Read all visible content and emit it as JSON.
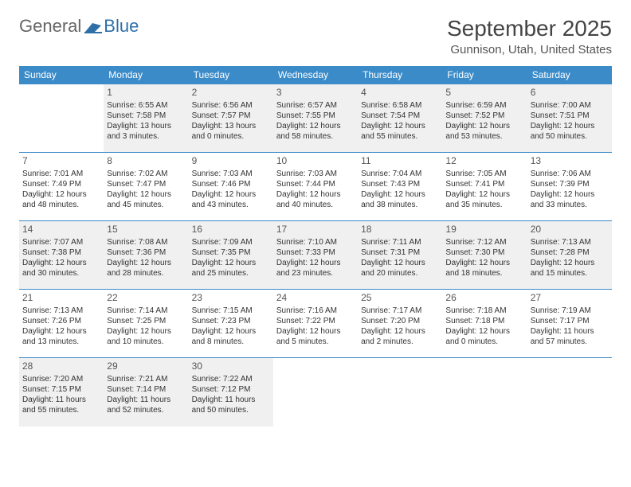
{
  "brand": {
    "general": "General",
    "blue": "Blue",
    "general_color": "#777777",
    "blue_color": "#2f6fa8",
    "icon_color": "#2f6fa8"
  },
  "title": "September 2025",
  "location": "Gunnison, Utah, United States",
  "colors": {
    "header_bg": "#3b8bc9",
    "header_text": "#ffffff",
    "stripe_bg": "#f0f0f0",
    "border": "#3b8bc9",
    "text": "#333333"
  },
  "day_headers": [
    "Sunday",
    "Monday",
    "Tuesday",
    "Wednesday",
    "Thursday",
    "Friday",
    "Saturday"
  ],
  "weeks": [
    [
      null,
      {
        "n": "1",
        "sr": "6:55 AM",
        "ss": "7:58 PM",
        "dl": "13 hours and 3 minutes."
      },
      {
        "n": "2",
        "sr": "6:56 AM",
        "ss": "7:57 PM",
        "dl": "13 hours and 0 minutes."
      },
      {
        "n": "3",
        "sr": "6:57 AM",
        "ss": "7:55 PM",
        "dl": "12 hours and 58 minutes."
      },
      {
        "n": "4",
        "sr": "6:58 AM",
        "ss": "7:54 PM",
        "dl": "12 hours and 55 minutes."
      },
      {
        "n": "5",
        "sr": "6:59 AM",
        "ss": "7:52 PM",
        "dl": "12 hours and 53 minutes."
      },
      {
        "n": "6",
        "sr": "7:00 AM",
        "ss": "7:51 PM",
        "dl": "12 hours and 50 minutes."
      }
    ],
    [
      {
        "n": "7",
        "sr": "7:01 AM",
        "ss": "7:49 PM",
        "dl": "12 hours and 48 minutes."
      },
      {
        "n": "8",
        "sr": "7:02 AM",
        "ss": "7:47 PM",
        "dl": "12 hours and 45 minutes."
      },
      {
        "n": "9",
        "sr": "7:03 AM",
        "ss": "7:46 PM",
        "dl": "12 hours and 43 minutes."
      },
      {
        "n": "10",
        "sr": "7:03 AM",
        "ss": "7:44 PM",
        "dl": "12 hours and 40 minutes."
      },
      {
        "n": "11",
        "sr": "7:04 AM",
        "ss": "7:43 PM",
        "dl": "12 hours and 38 minutes."
      },
      {
        "n": "12",
        "sr": "7:05 AM",
        "ss": "7:41 PM",
        "dl": "12 hours and 35 minutes."
      },
      {
        "n": "13",
        "sr": "7:06 AM",
        "ss": "7:39 PM",
        "dl": "12 hours and 33 minutes."
      }
    ],
    [
      {
        "n": "14",
        "sr": "7:07 AM",
        "ss": "7:38 PM",
        "dl": "12 hours and 30 minutes."
      },
      {
        "n": "15",
        "sr": "7:08 AM",
        "ss": "7:36 PM",
        "dl": "12 hours and 28 minutes."
      },
      {
        "n": "16",
        "sr": "7:09 AM",
        "ss": "7:35 PM",
        "dl": "12 hours and 25 minutes."
      },
      {
        "n": "17",
        "sr": "7:10 AM",
        "ss": "7:33 PM",
        "dl": "12 hours and 23 minutes."
      },
      {
        "n": "18",
        "sr": "7:11 AM",
        "ss": "7:31 PM",
        "dl": "12 hours and 20 minutes."
      },
      {
        "n": "19",
        "sr": "7:12 AM",
        "ss": "7:30 PM",
        "dl": "12 hours and 18 minutes."
      },
      {
        "n": "20",
        "sr": "7:13 AM",
        "ss": "7:28 PM",
        "dl": "12 hours and 15 minutes."
      }
    ],
    [
      {
        "n": "21",
        "sr": "7:13 AM",
        "ss": "7:26 PM",
        "dl": "12 hours and 13 minutes."
      },
      {
        "n": "22",
        "sr": "7:14 AM",
        "ss": "7:25 PM",
        "dl": "12 hours and 10 minutes."
      },
      {
        "n": "23",
        "sr": "7:15 AM",
        "ss": "7:23 PM",
        "dl": "12 hours and 8 minutes."
      },
      {
        "n": "24",
        "sr": "7:16 AM",
        "ss": "7:22 PM",
        "dl": "12 hours and 5 minutes."
      },
      {
        "n": "25",
        "sr": "7:17 AM",
        "ss": "7:20 PM",
        "dl": "12 hours and 2 minutes."
      },
      {
        "n": "26",
        "sr": "7:18 AM",
        "ss": "7:18 PM",
        "dl": "12 hours and 0 minutes."
      },
      {
        "n": "27",
        "sr": "7:19 AM",
        "ss": "7:17 PM",
        "dl": "11 hours and 57 minutes."
      }
    ],
    [
      {
        "n": "28",
        "sr": "7:20 AM",
        "ss": "7:15 PM",
        "dl": "11 hours and 55 minutes."
      },
      {
        "n": "29",
        "sr": "7:21 AM",
        "ss": "7:14 PM",
        "dl": "11 hours and 52 minutes."
      },
      {
        "n": "30",
        "sr": "7:22 AM",
        "ss": "7:12 PM",
        "dl": "11 hours and 50 minutes."
      },
      null,
      null,
      null,
      null
    ]
  ],
  "labels": {
    "sunrise": "Sunrise:",
    "sunset": "Sunset:",
    "daylight": "Daylight:"
  }
}
